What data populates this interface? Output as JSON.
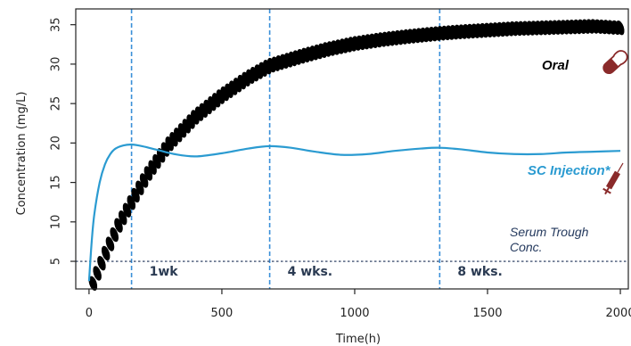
{
  "chart_data": {
    "type": "line",
    "xlabel": "Time(h)",
    "ylabel": "Concentration (mg/L)",
    "xlim": [
      -50,
      2030
    ],
    "ylim": [
      1.5,
      37
    ],
    "x_ticks": [
      0,
      500,
      1000,
      1500,
      2000
    ],
    "x_tick_labels": [
      "0",
      "500",
      "1000",
      "1500",
      "2000"
    ],
    "y_ticks": [
      5,
      10,
      15,
      20,
      25,
      30,
      35
    ],
    "y_tick_labels": [
      "5",
      "10",
      "15",
      "20",
      "25",
      "30",
      "35"
    ],
    "grid": false,
    "vertical_lines": [
      {
        "x": 160,
        "label": "1wk"
      },
      {
        "x": 680,
        "label": "4 wks."
      },
      {
        "x": 1320,
        "label": "8 wks."
      }
    ],
    "horizontal_line": {
      "y": 5,
      "label_line1": "Serum Trough",
      "label_line2": "Conc."
    },
    "series": [
      {
        "name": "Oral",
        "style": "markers",
        "color": "#000000",
        "x": [
          15,
          60,
          110,
          160,
          220,
          300,
          400,
          500,
          600,
          680,
          800,
          900,
          1000,
          1100,
          1200,
          1320,
          1400,
          1500,
          1600,
          1700,
          1800,
          1900,
          2000
        ],
        "y": [
          2.2,
          5.8,
          9.5,
          12.5,
          16.0,
          19.8,
          23.3,
          26.0,
          28.3,
          29.8,
          31.0,
          31.9,
          32.6,
          33.1,
          33.5,
          33.9,
          34.1,
          34.3,
          34.5,
          34.6,
          34.7,
          34.8,
          34.6
        ],
        "label_icon": "capsule-icon"
      },
      {
        "name": "SC Injection*",
        "style": "line",
        "color": "#2b9bd1",
        "x": [
          0,
          10,
          20,
          40,
          60,
          80,
          100,
          130,
          160,
          200,
          260,
          320,
          400,
          500,
          600,
          680,
          760,
          850,
          950,
          1050,
          1150,
          1250,
          1320,
          1400,
          1500,
          1600,
          1700,
          1800,
          1900,
          2000
        ],
        "y": [
          2.5,
          7.5,
          11.0,
          15.0,
          17.3,
          18.6,
          19.3,
          19.7,
          19.8,
          19.6,
          19.1,
          18.6,
          18.3,
          18.7,
          19.3,
          19.6,
          19.4,
          18.9,
          18.5,
          18.6,
          19.0,
          19.3,
          19.4,
          19.2,
          18.8,
          18.6,
          18.6,
          18.8,
          18.9,
          19.0
        ],
        "label_icon": "syringe-icon"
      }
    ]
  }
}
